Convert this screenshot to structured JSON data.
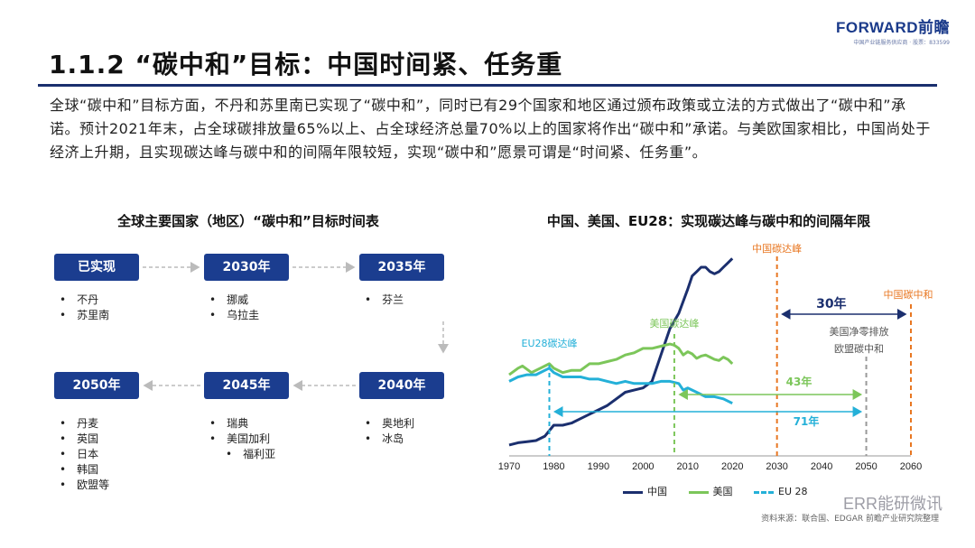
{
  "header": {
    "logo": "FORWARD前瞻",
    "logo_sub": "中国产业链服务供应商 · 股票：833599",
    "title": "1.1.2 “碳中和”目标：中国时间紧、任务重"
  },
  "intro": "全球“碳中和”目标方面，不丹和苏里南已实现了“碳中和”，同时已有29个国家和地区通过颁布政策或立法的方式做出了“碳中和”承诺。预计2021年末，占全球碳排放量65%以上、占全球经济总量70%以上的国家将作出“碳中和”承诺。与美欧国家相比，中国尚处于经济上升期，且实现碳达峰与碳中和的间隔年限较短，实现“碳中和”愿景可谓是“时间紧、任务重”。",
  "timeline": {
    "title": "全球主要国家（地区）“碳中和”目标时间表",
    "stages": [
      {
        "label": "已实现",
        "countries": [
          "不丹",
          "苏里南"
        ]
      },
      {
        "label": "2030年",
        "countries": [
          "挪威",
          "乌拉圭"
        ]
      },
      {
        "label": "2035年",
        "countries": [
          "芬兰"
        ]
      },
      {
        "label": "2040年",
        "countries": [
          "奥地利",
          "冰岛"
        ]
      },
      {
        "label": "2045年",
        "countries": [
          "瑞典",
          "美国加利",
          "福利亚"
        ]
      },
      {
        "label": "2050年",
        "countries": [
          "丹麦",
          "英国",
          "日本",
          "韩国",
          "欧盟等"
        ]
      }
    ]
  },
  "chart_data": {
    "type": "line",
    "title": "中国、美国、EU28：实现碳达峰与碳中和的间隔年限",
    "x_ticks": [
      1970,
      1980,
      1990,
      2000,
      2010,
      2020,
      2030,
      2040,
      2050,
      2060
    ],
    "xlim": [
      1970,
      2060
    ],
    "ylim": [
      0,
      100
    ],
    "grid": false,
    "legend_position": "bottom",
    "series": [
      {
        "name": "中国",
        "color": "#1b2f6e",
        "points": [
          [
            1970,
            5
          ],
          [
            1972,
            6
          ],
          [
            1974,
            6.5
          ],
          [
            1976,
            7
          ],
          [
            1978,
            9
          ],
          [
            1980,
            14
          ],
          [
            1982,
            14
          ],
          [
            1984,
            15
          ],
          [
            1986,
            17
          ],
          [
            1988,
            19
          ],
          [
            1990,
            21
          ],
          [
            1992,
            23
          ],
          [
            1994,
            26
          ],
          [
            1996,
            29
          ],
          [
            1998,
            30
          ],
          [
            2000,
            31
          ],
          [
            2002,
            34
          ],
          [
            2004,
            46
          ],
          [
            2006,
            58
          ],
          [
            2008,
            65
          ],
          [
            2010,
            76
          ],
          [
            2011,
            82
          ],
          [
            2012,
            84
          ],
          [
            2013,
            86
          ],
          [
            2014,
            86
          ],
          [
            2015,
            84
          ],
          [
            2016,
            83
          ],
          [
            2017,
            84
          ],
          [
            2018,
            86
          ],
          [
            2019,
            88
          ],
          [
            2020,
            90
          ]
        ]
      },
      {
        "name": "美国",
        "color": "#7cc65a",
        "points": [
          [
            1970,
            37
          ],
          [
            1972,
            40
          ],
          [
            1973,
            41
          ],
          [
            1975,
            38
          ],
          [
            1977,
            40
          ],
          [
            1979,
            42
          ],
          [
            1980,
            40
          ],
          [
            1982,
            38
          ],
          [
            1984,
            39
          ],
          [
            1986,
            39
          ],
          [
            1988,
            42
          ],
          [
            1990,
            42
          ],
          [
            1992,
            43
          ],
          [
            1994,
            44
          ],
          [
            1996,
            46
          ],
          [
            1998,
            47
          ],
          [
            2000,
            49
          ],
          [
            2002,
            49
          ],
          [
            2004,
            50
          ],
          [
            2006,
            51
          ],
          [
            2007,
            50.5
          ],
          [
            2008,
            49
          ],
          [
            2009,
            46
          ],
          [
            2010,
            47.5
          ],
          [
            2011,
            46.5
          ],
          [
            2012,
            44.5
          ],
          [
            2013,
            45.5
          ],
          [
            2014,
            46
          ],
          [
            2015,
            45
          ],
          [
            2016,
            44
          ],
          [
            2017,
            43.5
          ],
          [
            2018,
            45
          ],
          [
            2019,
            44
          ],
          [
            2020,
            42
          ]
        ]
      },
      {
        "name": "EU 28",
        "color": "#24b0d8",
        "points": [
          [
            1970,
            34
          ],
          [
            1972,
            36
          ],
          [
            1974,
            37
          ],
          [
            1976,
            37
          ],
          [
            1978,
            39
          ],
          [
            1979,
            40
          ],
          [
            1980,
            38
          ],
          [
            1982,
            36
          ],
          [
            1984,
            36
          ],
          [
            1986,
            36
          ],
          [
            1988,
            35
          ],
          [
            1990,
            35
          ],
          [
            1992,
            34
          ],
          [
            1994,
            33
          ],
          [
            1996,
            34
          ],
          [
            1998,
            33
          ],
          [
            2000,
            33
          ],
          [
            2002,
            33
          ],
          [
            2004,
            34
          ],
          [
            2006,
            34
          ],
          [
            2008,
            33
          ],
          [
            2009,
            30
          ],
          [
            2010,
            31
          ],
          [
            2012,
            29
          ],
          [
            2014,
            27
          ],
          [
            2016,
            27
          ],
          [
            2018,
            26
          ],
          [
            2020,
            24
          ]
        ]
      }
    ],
    "annotations": {
      "eu_peak": {
        "label": "EU28碳达峰",
        "year": 1979
      },
      "us_peak": {
        "label": "美国碳达峰",
        "year": 2007
      },
      "cn_peak": {
        "label": "中国碳达峰",
        "year": 2030
      },
      "cn_neutral": {
        "label": "中国碳中和",
        "year": 2060
      },
      "eu_us_neutral": {
        "year": 2050,
        "line1": "美国净零排放",
        "line2": "欧盟碳中和"
      },
      "gap_cn": {
        "label": "30年",
        "from": 2030,
        "to": 2060
      },
      "gap_us": {
        "label": "43年",
        "from": 2007,
        "to": 2050
      },
      "gap_eu": {
        "label": "71年",
        "from": 1979,
        "to": 2050
      }
    }
  },
  "source": "资料来源：联合国、EDGAR 前瞻产业研究院整理",
  "watermark": "ERR能研微讯"
}
